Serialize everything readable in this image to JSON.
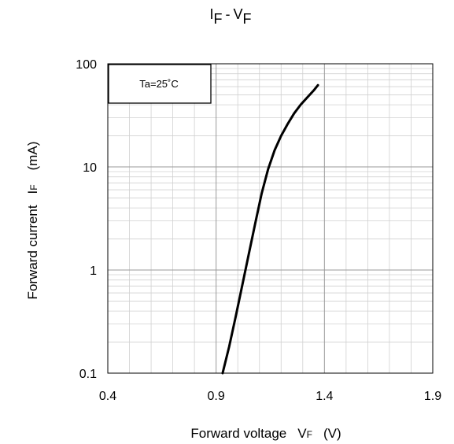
{
  "chart_data": {
    "type": "line",
    "title": {
      "main_1": "I",
      "sub_1": "F",
      "dash": "-",
      "main_2": "V",
      "sub_2": "F"
    },
    "xlabel": {
      "text": "Forward voltage",
      "symbol": "V",
      "subscript": "F",
      "unit": "(V)"
    },
    "ylabel": {
      "text": "Forward current",
      "symbol": "I",
      "subscript": "F",
      "unit": "(mA)"
    },
    "xlim": [
      0.4,
      1.9
    ],
    "ylim": [
      0.1,
      100
    ],
    "yscale": "log",
    "x_ticks": [
      "0.4",
      "0.9",
      "1.4",
      "1.9"
    ],
    "y_ticks": [
      "100",
      "10",
      "1",
      "0.1"
    ],
    "grid": true,
    "annotation": "Ta=25˚C",
    "annotation_position": "top-left",
    "line_color": "#000000",
    "series": [
      {
        "x": [
          0.93,
          0.96,
          0.99,
          1.02,
          1.05,
          1.08,
          1.11,
          1.14,
          1.17,
          1.2,
          1.23,
          1.26,
          1.29,
          1.32,
          1.35,
          1.37
        ],
        "y": [
          0.1,
          0.18,
          0.35,
          0.7,
          1.4,
          2.8,
          5.5,
          9.5,
          14.5,
          20,
          26,
          33,
          40,
          47,
          55,
          62
        ]
      }
    ]
  }
}
